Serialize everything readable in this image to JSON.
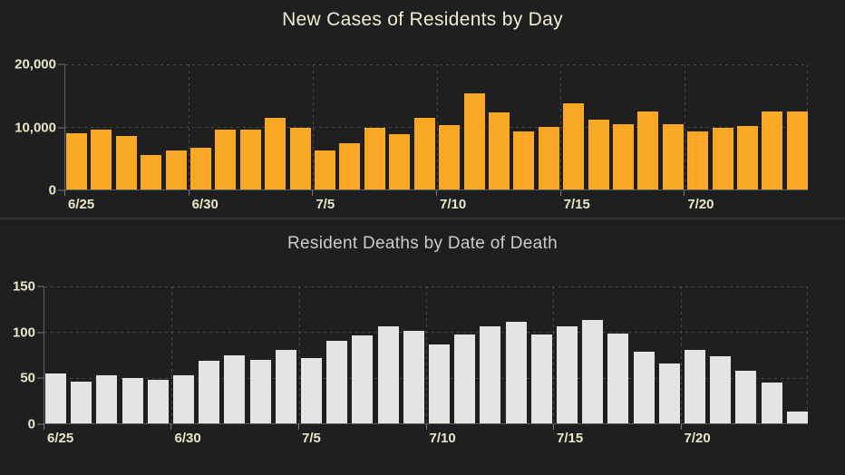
{
  "page": {
    "background": "#1F1F1F",
    "divider_color": "#343434"
  },
  "chart_data": [
    {
      "type": "bar",
      "title": "New Cases of Residents by Day",
      "title_color": "#F1ECD2",
      "bar_color": "#F9A826",
      "tick_label_color": "#EAE6C8",
      "grid": true,
      "legend": false,
      "xlabel": "",
      "ylabel": "",
      "ylim": [
        0,
        20000
      ],
      "y_ticks": [
        {
          "value": 20000,
          "label": "20,000"
        },
        {
          "value": 10000,
          "label": "10,000"
        },
        {
          "value": 0,
          "label": "0"
        }
      ],
      "x_ticks": [
        {
          "index": 0,
          "label": "6/25"
        },
        {
          "index": 5,
          "label": "6/30"
        },
        {
          "index": 10,
          "label": "7/5"
        },
        {
          "index": 15,
          "label": "7/10"
        },
        {
          "index": 20,
          "label": "7/15"
        },
        {
          "index": 25,
          "label": "7/20"
        }
      ],
      "categories": [
        "6/25",
        "6/26",
        "6/27",
        "6/28",
        "6/29",
        "6/30",
        "7/1",
        "7/2",
        "7/3",
        "7/4",
        "7/5",
        "7/6",
        "7/7",
        "7/8",
        "7/9",
        "7/10",
        "7/11",
        "7/12",
        "7/13",
        "7/14",
        "7/15",
        "7/16",
        "7/17",
        "7/18",
        "7/19",
        "7/20",
        "7/21",
        "7/22",
        "7/23",
        "7/24"
      ],
      "values": [
        9000,
        9600,
        8500,
        5500,
        6200,
        6600,
        9600,
        9600,
        11400,
        9900,
        6300,
        7400,
        9800,
        8900,
        11400,
        10300,
        15300,
        12300,
        9300,
        10000,
        13800,
        11200,
        10400,
        12500,
        10500,
        9300,
        9800,
        10100,
        12500,
        12400
      ]
    },
    {
      "type": "bar",
      "title": "Resident Deaths by Date of Death",
      "title_color": "#CBCBCB",
      "bar_color": "#E4E4E4",
      "tick_label_color": "#EAE6C8",
      "grid": true,
      "legend": false,
      "xlabel": "",
      "ylabel": "",
      "ylim": [
        0,
        150
      ],
      "y_ticks": [
        {
          "value": 150,
          "label": "150"
        },
        {
          "value": 100,
          "label": "100"
        },
        {
          "value": 50,
          "label": "50"
        },
        {
          "value": 0,
          "label": "0"
        }
      ],
      "x_ticks": [
        {
          "index": 0,
          "label": "6/25"
        },
        {
          "index": 5,
          "label": "6/30"
        },
        {
          "index": 10,
          "label": "7/5"
        },
        {
          "index": 15,
          "label": "7/10"
        },
        {
          "index": 20,
          "label": "7/15"
        },
        {
          "index": 25,
          "label": "7/20"
        }
      ],
      "categories": [
        "6/25",
        "6/26",
        "6/27",
        "6/28",
        "6/29",
        "6/30",
        "7/1",
        "7/2",
        "7/3",
        "7/4",
        "7/5",
        "7/6",
        "7/7",
        "7/8",
        "7/9",
        "7/10",
        "7/11",
        "7/12",
        "7/13",
        "7/14",
        "7/15",
        "7/16",
        "7/17",
        "7/18",
        "7/19",
        "7/20",
        "7/21",
        "7/22",
        "7/23",
        "7/24"
      ],
      "values": [
        55,
        46,
        53,
        50,
        48,
        53,
        69,
        75,
        70,
        80,
        72,
        90,
        96,
        106,
        101,
        86,
        97,
        106,
        111,
        97,
        106,
        113,
        98,
        78,
        66,
        80,
        74,
        58,
        45,
        13
      ]
    }
  ]
}
